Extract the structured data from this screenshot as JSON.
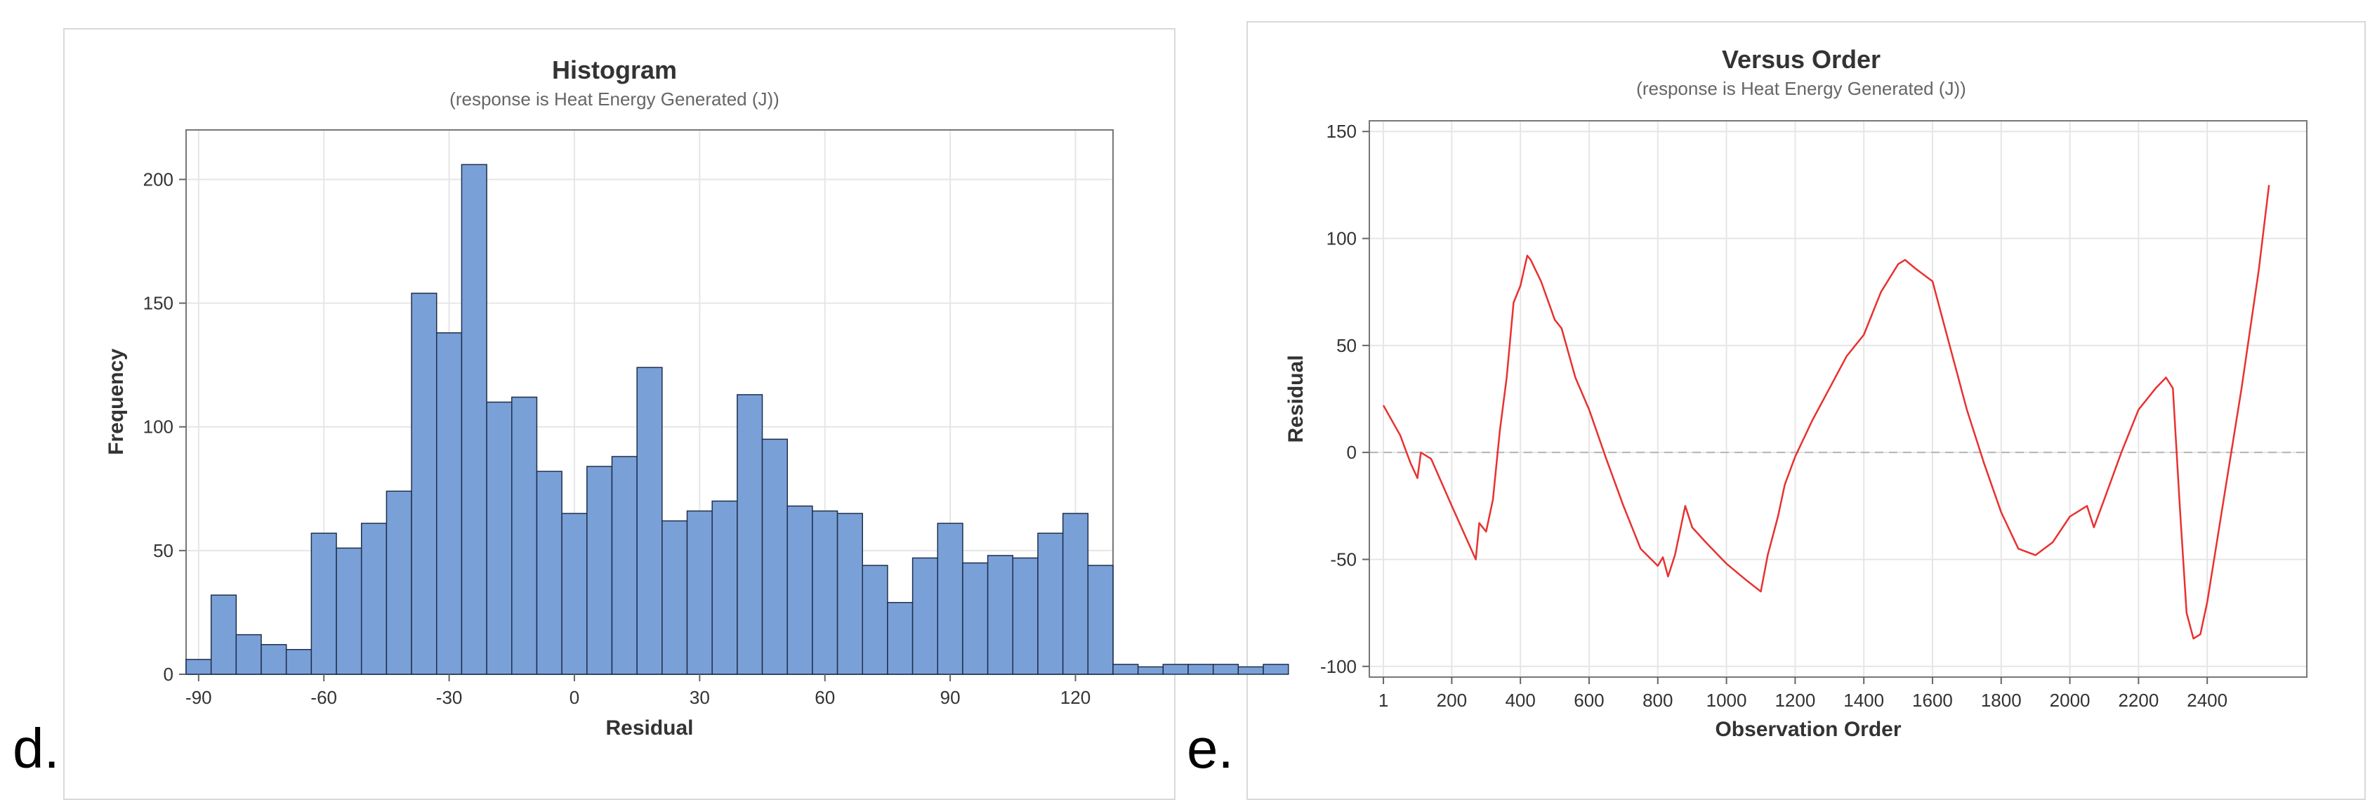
{
  "panel_labels": {
    "d": "d.",
    "e": "e."
  },
  "colors": {
    "bar_fill": "#7aa0d8",
    "bar_edge": "#1f2f4a",
    "line": "#e8312f",
    "grid": "#e6e6e6",
    "refline": "#b5b5b5",
    "axis": "#666666",
    "text": "#333333"
  },
  "chart_data": [
    {
      "type": "bar",
      "title": "Histogram",
      "subtitle": "(response is Heat Energy Generated (J))",
      "xlabel": "Residual",
      "ylabel": "Frequency",
      "bin_width": 6,
      "bin_start": -93,
      "values": [
        6,
        32,
        16,
        12,
        10,
        57,
        51,
        61,
        74,
        154,
        138,
        206,
        110,
        112,
        82,
        65,
        84,
        88,
        124,
        62,
        66,
        70,
        113,
        95,
        68,
        66,
        65,
        44,
        29,
        47,
        61,
        45,
        48,
        47,
        57,
        65,
        44,
        4,
        3,
        4,
        4,
        4,
        3,
        4
      ],
      "xlim": [
        -93,
        129
      ],
      "ylim": [
        0,
        220
      ],
      "xticks": [
        -90,
        -60,
        -30,
        0,
        30,
        60,
        90,
        120
      ],
      "xtick_labels": [
        "-90",
        "-60",
        "-30",
        "0",
        "30",
        "60",
        "90",
        "120"
      ],
      "yticks": [
        0,
        50,
        100,
        150,
        200
      ],
      "ytick_labels": [
        "0",
        "50",
        "100",
        "150",
        "200"
      ],
      "grid": true
    },
    {
      "type": "line",
      "title": "Versus Order",
      "subtitle": "(response is Heat Energy Generated (J))",
      "xlabel": "Observation Order",
      "ylabel": "Residual",
      "x": [
        1,
        50,
        80,
        100,
        110,
        140,
        200,
        270,
        280,
        300,
        320,
        340,
        360,
        380,
        400,
        420,
        430,
        460,
        500,
        520,
        560,
        600,
        650,
        700,
        750,
        800,
        815,
        830,
        850,
        880,
        900,
        940,
        1000,
        1060,
        1100,
        1120,
        1150,
        1170,
        1200,
        1250,
        1300,
        1350,
        1400,
        1450,
        1500,
        1520,
        1550,
        1600,
        1650,
        1700,
        1750,
        1800,
        1850,
        1900,
        1950,
        2000,
        2050,
        2070,
        2100,
        2150,
        2200,
        2250,
        2280,
        2300,
        2320,
        2340,
        2360,
        2380,
        2400,
        2450,
        2500,
        2550,
        2580
      ],
      "values": [
        22,
        8,
        -5,
        -12,
        0,
        -3,
        -25,
        -50,
        -33,
        -37,
        -22,
        10,
        35,
        70,
        78,
        92,
        90,
        80,
        62,
        58,
        35,
        20,
        -3,
        -25,
        -45,
        -53,
        -49,
        -58,
        -48,
        -25,
        -35,
        -42,
        -52,
        -60,
        -65,
        -48,
        -30,
        -15,
        -2,
        15,
        30,
        45,
        55,
        75,
        88,
        90,
        86,
        80,
        50,
        20,
        -5,
        -28,
        -45,
        -48,
        -42,
        -30,
        -25,
        -35,
        -22,
        0,
        20,
        30,
        35,
        30,
        -25,
        -75,
        -87,
        -85,
        -70,
        -20,
        30,
        85,
        125
      ],
      "xlim": [
        -40,
        2690
      ],
      "ylim": [
        -105,
        155
      ],
      "xticks": [
        1,
        200,
        400,
        600,
        800,
        1000,
        1200,
        1400,
        1600,
        1800,
        2000,
        2200,
        2400
      ],
      "xtick_labels": [
        "1",
        "200",
        "400",
        "600",
        "800",
        "1000",
        "1200",
        "1400",
        "1600",
        "1800",
        "2000",
        "2200",
        "2400"
      ],
      "yticks": [
        -100,
        -50,
        0,
        50,
        100,
        150
      ],
      "ytick_labels": [
        "-100",
        "-50",
        "0",
        "50",
        "100",
        "150"
      ],
      "reference_line": 0,
      "grid": true
    }
  ]
}
